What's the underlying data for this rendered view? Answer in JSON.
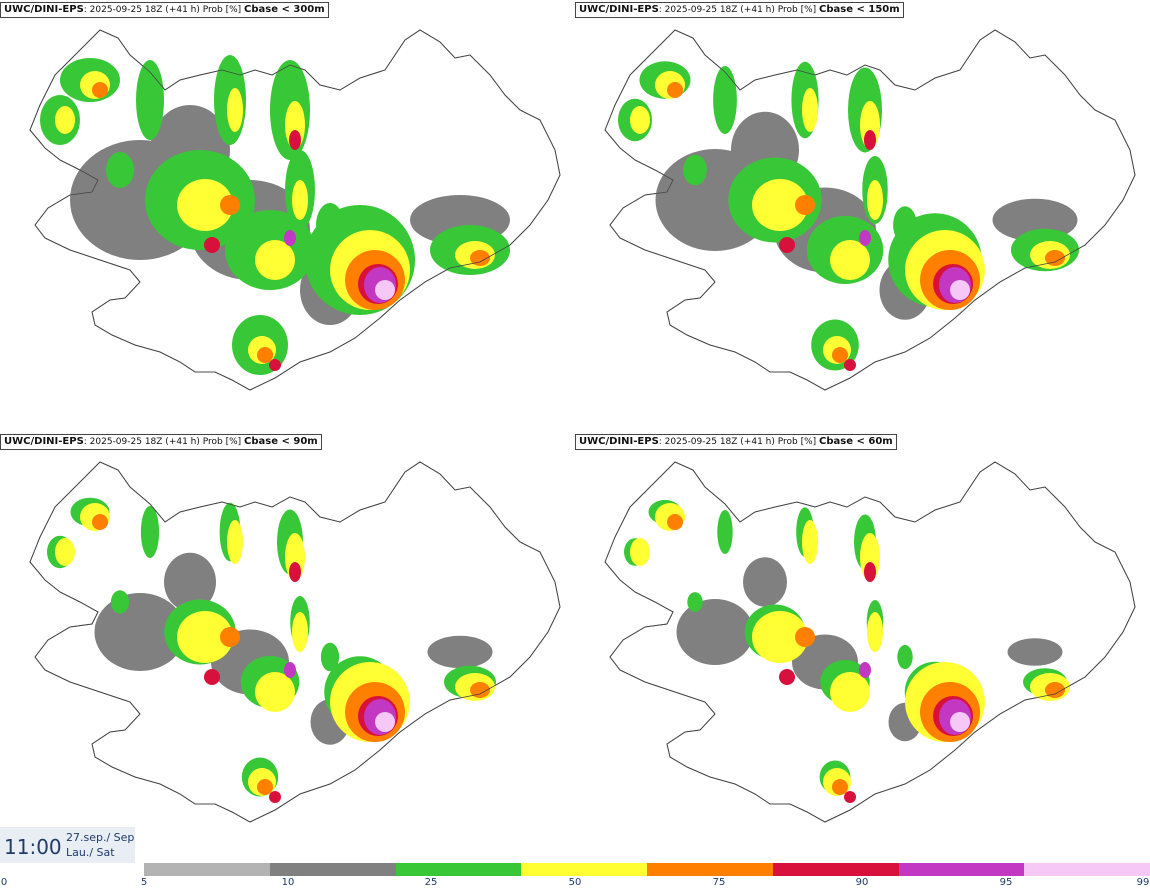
{
  "panels": [
    {
      "model": "UWC/DINI-EPS",
      "run": ": 2025-09-25 18Z (+41 h) Prob [%]",
      "threshold": "Cbase < 300m"
    },
    {
      "model": "UWC/DINI-EPS",
      "run": ": 2025-09-25 18Z (+41 h) Prob [%]",
      "threshold": "Cbase < 150m"
    },
    {
      "model": "UWC/DINI-EPS",
      "run": ": 2025-09-25 18Z (+41 h) Prob [%]",
      "threshold": "Cbase < 90m"
    },
    {
      "model": "UWC/DINI-EPS",
      "run": ": 2025-09-25 18Z (+41 h) Prob [%]",
      "threshold": "Cbase < 60m"
    }
  ],
  "valid_time": {
    "time": "11:00",
    "date_line1": "27.sep./ Sep",
    "date_line2": "Lau./ Sat"
  },
  "colorbar": {
    "ticks": [
      "0",
      "5",
      "10",
      "25",
      "50",
      "75",
      "90",
      "95",
      "99"
    ],
    "colors": [
      "#b3b3b3",
      "#808080",
      "#38c837",
      "#ffff33",
      "#ff7f00",
      "#d8103c",
      "#c238c2",
      "#f5c8f5"
    ]
  }
}
